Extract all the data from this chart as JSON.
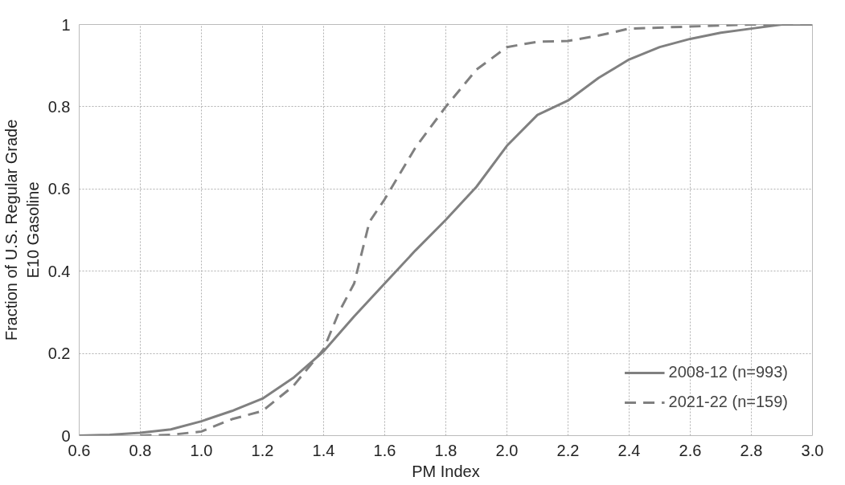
{
  "chart_data": {
    "type": "line",
    "xlabel": "PM Index",
    "ylabel": "Fraction of U.S. Regular Grade\nE10 Gasoline",
    "xlim": [
      0.6,
      3.0
    ],
    "ylim": [
      0,
      1
    ],
    "xticks": [
      0.6,
      0.8,
      {
        "value": 1.0,
        "label": "1.0"
      },
      1.2,
      1.4,
      1.6,
      1.8,
      {
        "value": 2.0,
        "label": "2.0"
      },
      2.2,
      2.4,
      2.6,
      2.8,
      {
        "value": 3.0,
        "label": "3.0"
      }
    ],
    "yticks": [
      0,
      0.2,
      0.4,
      0.6,
      0.8,
      1
    ],
    "grid": true,
    "legend": "bottom right",
    "marker": "none",
    "series": [
      {
        "name": "2008-12 (n=993)",
        "color": "#808080",
        "line_style": "solid",
        "x": [
          0.6,
          0.7,
          0.8,
          0.9,
          1.0,
          1.1,
          1.2,
          1.3,
          1.4,
          1.5,
          1.6,
          1.7,
          1.8,
          1.9,
          2.0,
          2.1,
          2.2,
          2.3,
          2.4,
          2.5,
          2.6,
          2.7,
          2.8,
          2.9,
          3.0
        ],
        "values": [
          0,
          0.002,
          0.007,
          0.015,
          0.035,
          0.06,
          0.09,
          0.14,
          0.205,
          0.29,
          0.37,
          0.45,
          0.525,
          0.605,
          0.705,
          0.78,
          0.815,
          0.87,
          0.915,
          0.945,
          0.965,
          0.98,
          0.99,
          1.0,
          1.0
        ]
      },
      {
        "name": "2021-22 (n=159)",
        "color": "#808080",
        "line_style": "dashed",
        "x": [
          0.8,
          0.9,
          1.0,
          1.1,
          1.2,
          1.3,
          1.4,
          1.45,
          1.5,
          1.55,
          1.6,
          1.7,
          1.8,
          1.9,
          2.0,
          2.1,
          2.2,
          2.3,
          2.4,
          2.6,
          2.8,
          3.0
        ],
        "values": [
          0,
          0.002,
          0.01,
          0.04,
          0.06,
          0.12,
          0.21,
          0.3,
          0.37,
          0.52,
          0.575,
          0.7,
          0.8,
          0.89,
          0.945,
          0.958,
          0.96,
          0.973,
          0.99,
          0.995,
          1.0,
          1.0
        ]
      }
    ]
  }
}
